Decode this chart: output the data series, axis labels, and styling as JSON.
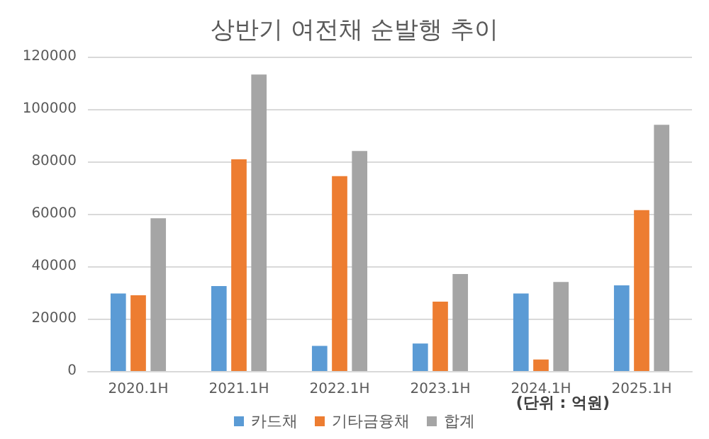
{
  "chart_data": {
    "type": "bar",
    "title": "상반기 여전채 순발행 추이",
    "categories": [
      "2020.1H",
      "2021.1H",
      "2022.1H",
      "2023.1H",
      "2024.1H",
      "2025.1H"
    ],
    "series": [
      {
        "name": "카드채",
        "color": "#5b9bd5",
        "values": [
          29600,
          32400,
          9600,
          10500,
          29600,
          32700
        ]
      },
      {
        "name": "기타금융채",
        "color": "#ed7d31",
        "values": [
          28900,
          80800,
          74400,
          26500,
          4400,
          61400
        ]
      },
      {
        "name": "합계",
        "color": "#a5a5a5",
        "values": [
          58300,
          113200,
          84000,
          37000,
          34000,
          94000
        ]
      }
    ],
    "ylim": [
      0,
      120000
    ],
    "yticks": [
      0,
      20000,
      40000,
      60000,
      80000,
      100000,
      120000
    ],
    "grid": "y",
    "legend": "bottom",
    "annotations": [
      "(단위 : 억원)"
    ]
  }
}
